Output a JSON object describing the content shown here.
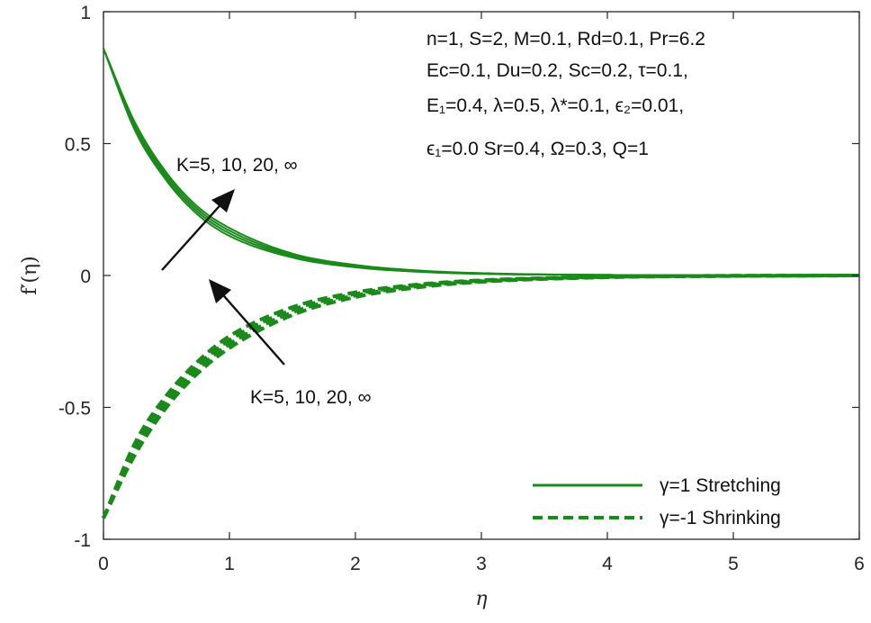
{
  "chart_data": {
    "type": "line",
    "xlabel": "η",
    "ylabel": "f′(η)",
    "xlim": [
      0,
      6
    ],
    "ylim": [
      -1,
      1
    ],
    "xticks": [
      "0",
      "1",
      "2",
      "3",
      "4",
      "5",
      "6"
    ],
    "yticks": [
      "-1",
      "-0.5",
      "0",
      "0.5",
      "1"
    ],
    "grid": false,
    "legend_position": "bottom-right",
    "line_color": "#1a8a1a",
    "parameters": [
      "n=1, S=2, M=0.1, Rd=0.1, Pr=6.2",
      "Ec=0.1, Du=0.2, Sc=0.2, τ=0.1,",
      "E₁=0.4, λ=0.5, λ*=0.1, ϵ₂=0.01,",
      "ϵ₁=0.0 Sr=0.4, Ω=0.3, Q=1"
    ],
    "annotations": [
      {
        "text": "K=5, 10, 20, ∞",
        "arrow": "up-right"
      },
      {
        "text": "K=5, 10, 20, ∞",
        "arrow": "up-left"
      }
    ],
    "legend": [
      {
        "label": "γ=1 Stretching",
        "style": "solid"
      },
      {
        "label": "γ=-1 Shrinking",
        "style": "dashed"
      }
    ],
    "series": [
      {
        "group": "stretching",
        "style": "solid",
        "K": "5",
        "x": [
          0,
          0.25,
          0.5,
          0.75,
          1,
          1.5,
          2,
          2.5,
          3,
          4,
          5,
          6
        ],
        "y": [
          0.86,
          0.55,
          0.36,
          0.23,
          0.15,
          0.068,
          0.031,
          0.014,
          0.006,
          0.002,
          0.001,
          0
        ]
      },
      {
        "group": "stretching",
        "style": "solid",
        "K": "10",
        "x": [
          0,
          0.25,
          0.5,
          0.75,
          1,
          1.5,
          2,
          2.5,
          3,
          4,
          5,
          6
        ],
        "y": [
          0.86,
          0.56,
          0.37,
          0.24,
          0.16,
          0.073,
          0.034,
          0.016,
          0.007,
          0.002,
          0.001,
          0
        ]
      },
      {
        "group": "stretching",
        "style": "solid",
        "K": "20",
        "x": [
          0,
          0.25,
          0.5,
          0.75,
          1,
          1.5,
          2,
          2.5,
          3,
          4,
          5,
          6
        ],
        "y": [
          0.86,
          0.57,
          0.38,
          0.25,
          0.17,
          0.078,
          0.037,
          0.017,
          0.008,
          0.002,
          0.001,
          0
        ]
      },
      {
        "group": "stretching",
        "style": "solid",
        "K": "∞",
        "x": [
          0,
          0.25,
          0.5,
          0.75,
          1,
          1.5,
          2,
          2.5,
          3,
          4,
          5,
          6
        ],
        "y": [
          0.86,
          0.58,
          0.39,
          0.26,
          0.18,
          0.083,
          0.04,
          0.019,
          0.009,
          0.002,
          0.001,
          0
        ]
      },
      {
        "group": "shrinking",
        "style": "dashed",
        "K": "5",
        "x": [
          0,
          0.25,
          0.5,
          0.75,
          1,
          1.5,
          2,
          2.5,
          3,
          4,
          5,
          6
        ],
        "y": [
          -0.92,
          -0.68,
          -0.5,
          -0.37,
          -0.275,
          -0.15,
          -0.082,
          -0.045,
          -0.024,
          -0.007,
          -0.002,
          0
        ]
      },
      {
        "group": "shrinking",
        "style": "dashed",
        "K": "10",
        "x": [
          0,
          0.25,
          0.5,
          0.75,
          1,
          1.5,
          2,
          2.5,
          3,
          4,
          5,
          6
        ],
        "y": [
          -0.92,
          -0.665,
          -0.485,
          -0.355,
          -0.26,
          -0.14,
          -0.076,
          -0.041,
          -0.022,
          -0.006,
          -0.002,
          0
        ]
      },
      {
        "group": "shrinking",
        "style": "dashed",
        "K": "20",
        "x": [
          0,
          0.25,
          0.5,
          0.75,
          1,
          1.5,
          2,
          2.5,
          3,
          4,
          5,
          6
        ],
        "y": [
          -0.92,
          -0.65,
          -0.47,
          -0.34,
          -0.245,
          -0.13,
          -0.07,
          -0.037,
          -0.02,
          -0.005,
          -0.001,
          0
        ]
      },
      {
        "group": "shrinking",
        "style": "dashed",
        "K": "∞",
        "x": [
          0,
          0.25,
          0.5,
          0.75,
          1,
          1.5,
          2,
          2.5,
          3,
          4,
          5,
          6
        ],
        "y": [
          -0.92,
          -0.635,
          -0.455,
          -0.325,
          -0.23,
          -0.12,
          -0.064,
          -0.034,
          -0.018,
          -0.005,
          -0.001,
          0
        ]
      }
    ]
  }
}
